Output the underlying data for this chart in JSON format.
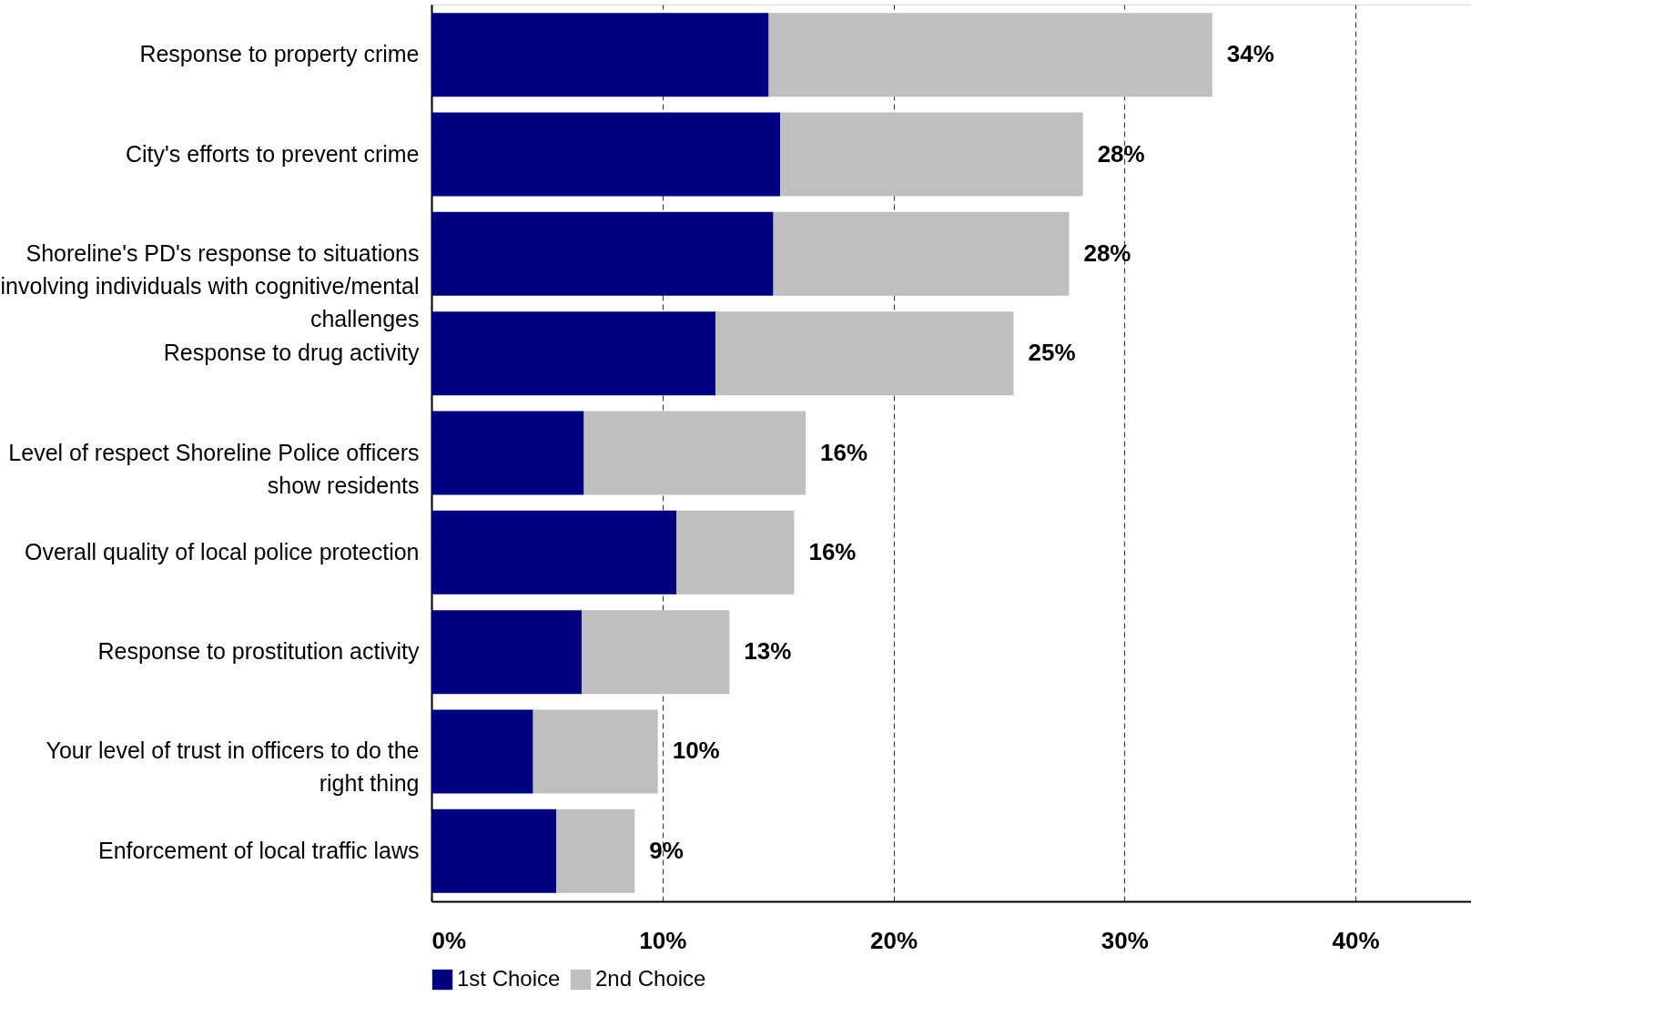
{
  "chart_data": {
    "type": "bar",
    "orientation": "horizontal",
    "stacked": true,
    "categories": [
      "Response to property crime",
      "City's efforts to prevent crime",
      "Shoreline's PD's response to situations involving individuals with cognitive/mental challenges",
      "Response to drug activity",
      "Level of respect Shoreline Police officers show residents",
      "Overall quality of local police protection",
      "Response to prostitution activity",
      "Your level of trust in officers to do the right thing",
      "Enforcement of local traffic laws"
    ],
    "series": [
      {
        "name": "1st Choice",
        "color": "#000080",
        "values": [
          14.6,
          15.1,
          14.8,
          12.3,
          6.6,
          10.6,
          6.5,
          4.4,
          5.4
        ]
      },
      {
        "name": "2nd Choice",
        "color": "#bfbfbf",
        "values": [
          19.2,
          13.1,
          12.8,
          12.9,
          9.6,
          5.1,
          6.4,
          5.4,
          3.4
        ]
      }
    ],
    "totals": [
      "34%",
      "28%",
      "28%",
      "25%",
      "16%",
      "16%",
      "13%",
      "10%",
      "9%"
    ],
    "xlim": [
      0,
      45
    ],
    "xticks": [
      {
        "value": 0,
        "label": "0%"
      },
      {
        "value": 10,
        "label": "10%"
      },
      {
        "value": 20,
        "label": "20%"
      },
      {
        "value": 30,
        "label": "30%"
      },
      {
        "value": 40,
        "label": "40%"
      }
    ],
    "grid": "x",
    "legend": "bottom"
  }
}
